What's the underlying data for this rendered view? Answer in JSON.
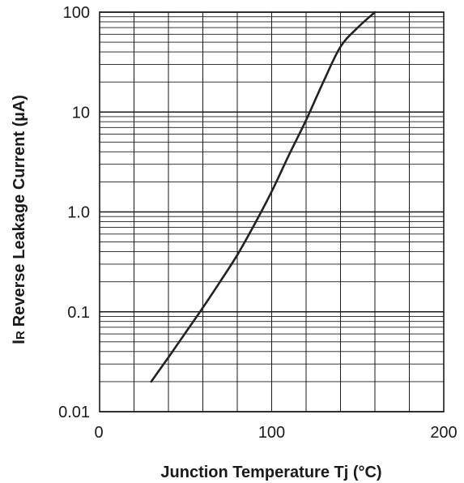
{
  "chart_data": {
    "type": "line",
    "x_scale": "linear",
    "y_scale": "log",
    "xlabel": "Junction Temperature Tj (°C)",
    "ylabel_symbol": "I",
    "ylabel_subscript": "R",
    "ylabel_rest": "Reverse Leakage Current (µA)",
    "xlim": [
      0,
      200
    ],
    "ylim": [
      0.01,
      100
    ],
    "x_ticks": [
      0,
      100,
      200
    ],
    "x_tick_labels": [
      "0",
      "100",
      "200"
    ],
    "y_ticks": [
      0.01,
      0.1,
      1.0,
      10,
      100
    ],
    "y_tick_labels": [
      "0.01",
      "0.1",
      "1.0",
      "10",
      "100"
    ],
    "x_grid_step": 20,
    "y_minor_grid": [
      2,
      3,
      4,
      5,
      6,
      7,
      8,
      9
    ],
    "grid": true,
    "line_color": "#222222",
    "grid_color": "#1a1a1a",
    "series": [
      {
        "x": [
          30,
          40,
          50,
          60,
          70,
          80,
          90,
          100,
          110,
          120,
          130,
          140,
          150,
          160
        ],
        "y": [
          0.02,
          0.035,
          0.062,
          0.11,
          0.2,
          0.37,
          0.75,
          1.6,
          3.7,
          8.3,
          20,
          45,
          70,
          100
        ]
      }
    ]
  }
}
